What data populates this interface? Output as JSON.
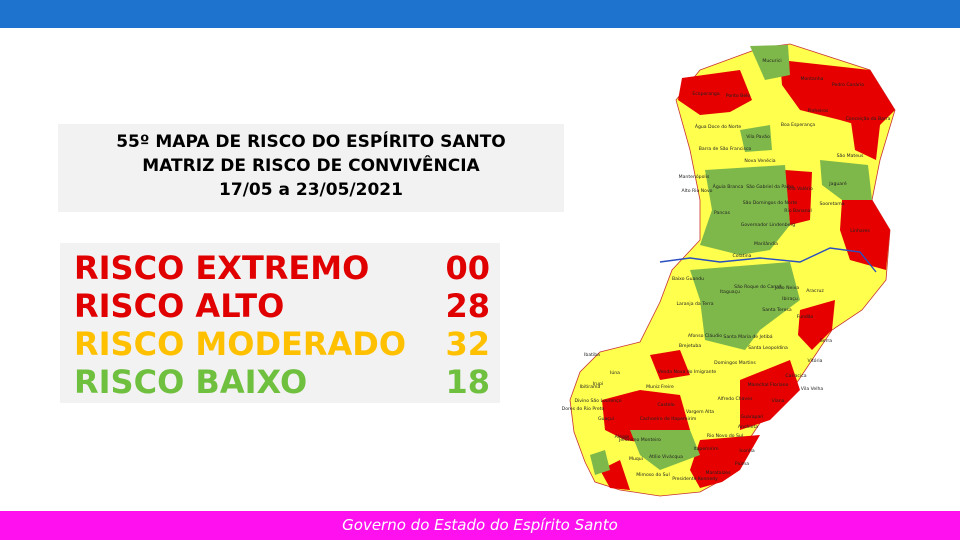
{
  "header": {
    "lines": [
      "55º MAPA DE RISCO DO ESPÍRITO SANTO",
      "MATRIZ DE RISCO DE CONVIVÊNCIA",
      "17/05 a 23/05/2021"
    ]
  },
  "risk_levels": [
    {
      "label": "RISCO EXTREMO",
      "count": "00",
      "color": "#e00000"
    },
    {
      "label": "RISCO ALTO",
      "count": "28",
      "color": "#e00000"
    },
    {
      "label": "RISCO MODERADO",
      "count": "32",
      "color": "#ffc000"
    },
    {
      "label": "RISCO BAIXO",
      "count": "18",
      "color": "#70c040"
    }
  ],
  "map": {
    "labels": [
      "Mucurici",
      "Montanha",
      "Pedro Canário",
      "Ecoporanga",
      "Ponto Belo",
      "Pinheiros",
      "Conceição da Barra",
      "Boa Esperança",
      "Água Doce do Norte",
      "Vila Pavão",
      "São Mateus",
      "Barra de São Francisco",
      "Nova Venécia",
      "Mantenópolis",
      "Vila Valério",
      "Jaguaré",
      "Alto Rio Novo",
      "Águia Branca",
      "São Gabriel da Palha",
      "Sooretama",
      "São Domingos do Norte",
      "Rio Bananal",
      "Linhares",
      "Pancas",
      "Governador Lindenberg",
      "Marilândia",
      "Colatina",
      "Baixo Guandu",
      "São Roque do Canaã",
      "João Neiva",
      "Aracruz",
      "Itaguaçu",
      "Ibiraçu",
      "Laranja da Terra",
      "Santa Teresa",
      "Fundão",
      "Afonso Cláudio",
      "Santa Maria de Jetibá",
      "Serra",
      "Brejetuba",
      "Santa Leopoldina",
      "Vitória",
      "Ibatiba",
      "Domingos Martins",
      "Iúna",
      "Venda Nova do Imigrante",
      "Cariacica",
      "Vila Velha",
      "Irupi",
      "Marechal Floriano",
      "Viana",
      "Ibitirama",
      "Muniz Freire",
      "Alfredo Chaves",
      "Divino São Lourenço",
      "Castelo",
      "Guarapari",
      "Dores do Rio Preto",
      "Vargem Alta",
      "Anchieta",
      "Guaçuí",
      "Cachoeiro de Itapemirim",
      "Rio Novo do Sul",
      "Alegre",
      "Jerônimo Monteiro",
      "Iconha",
      "Piúma",
      "Muqui",
      "Atílio Vivácqua",
      "Itapemirim",
      "Mimoso do Sul",
      "Presidente Kennedy",
      "Marataízes"
    ]
  },
  "footer": {
    "text": "Governo do Estado do Espírito Santo"
  }
}
